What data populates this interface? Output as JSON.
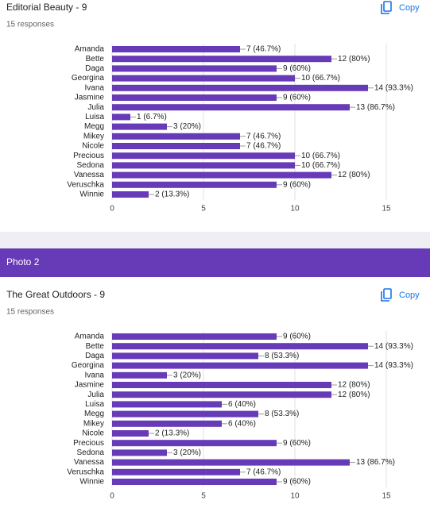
{
  "section": {
    "title": "Photo 2"
  },
  "chart_data": [
    {
      "type": "bar",
      "orientation": "horizontal",
      "title": "Editorial Beauty - 9",
      "subtitle": "15 responses",
      "action": "Copy",
      "color": "#673ab7",
      "grid": true,
      "categories": [
        "Amanda",
        "Bette",
        "Daga",
        "Georgina",
        "Ivana",
        "Jasmine",
        "Julia",
        "Luisa",
        "Megg",
        "Mikey",
        "Nicole",
        "Precious",
        "Sedona",
        "Vanessa",
        "Veruschka",
        "Winnie"
      ],
      "values": [
        7,
        12,
        9,
        10,
        14,
        9,
        13,
        1,
        3,
        7,
        7,
        10,
        10,
        12,
        9,
        2
      ],
      "value_labels": [
        "7 (46.7%)",
        "12 (80%)",
        "9 (60%)",
        "10 (66.7%)",
        "14 (93.3%)",
        "9 (60%)",
        "13 (86.7%)",
        "1 (6.7%)",
        "3 (20%)",
        "7 (46.7%)",
        "7 (46.7%)",
        "10 (66.7%)",
        "10 (66.7%)",
        "12 (80%)",
        "9 (60%)",
        "2 (13.3%)"
      ],
      "xlim": [
        0,
        15
      ],
      "xticks": [
        0,
        5,
        10,
        15
      ]
    },
    {
      "type": "bar",
      "orientation": "horizontal",
      "title": "The Great Outdoors - 9",
      "subtitle": "15 responses",
      "action": "Copy",
      "color": "#673ab7",
      "grid": true,
      "categories": [
        "Amanda",
        "Bette",
        "Daga",
        "Georgina",
        "Ivana",
        "Jasmine",
        "Julia",
        "Luisa",
        "Megg",
        "Mikey",
        "Nicole",
        "Precious",
        "Sedona",
        "Vanessa",
        "Veruschka",
        "Winnie"
      ],
      "values": [
        9,
        14,
        8,
        14,
        3,
        12,
        12,
        6,
        8,
        6,
        2,
        9,
        3,
        13,
        7,
        9
      ],
      "value_labels": [
        "9 (60%)",
        "14 (93.3%)",
        "8 (53.3%)",
        "14 (93.3%)",
        "3 (20%)",
        "12 (80%)",
        "12 (80%)",
        "6 (40%)",
        "8 (53.3%)",
        "6 (40%)",
        "2 (13.3%)",
        "9 (60%)",
        "3 (20%)",
        "13 (86.7%)",
        "7 (46.7%)",
        "9 (60%)"
      ],
      "xlim": [
        0,
        15
      ],
      "xticks": [
        0,
        5,
        10,
        15
      ]
    }
  ]
}
